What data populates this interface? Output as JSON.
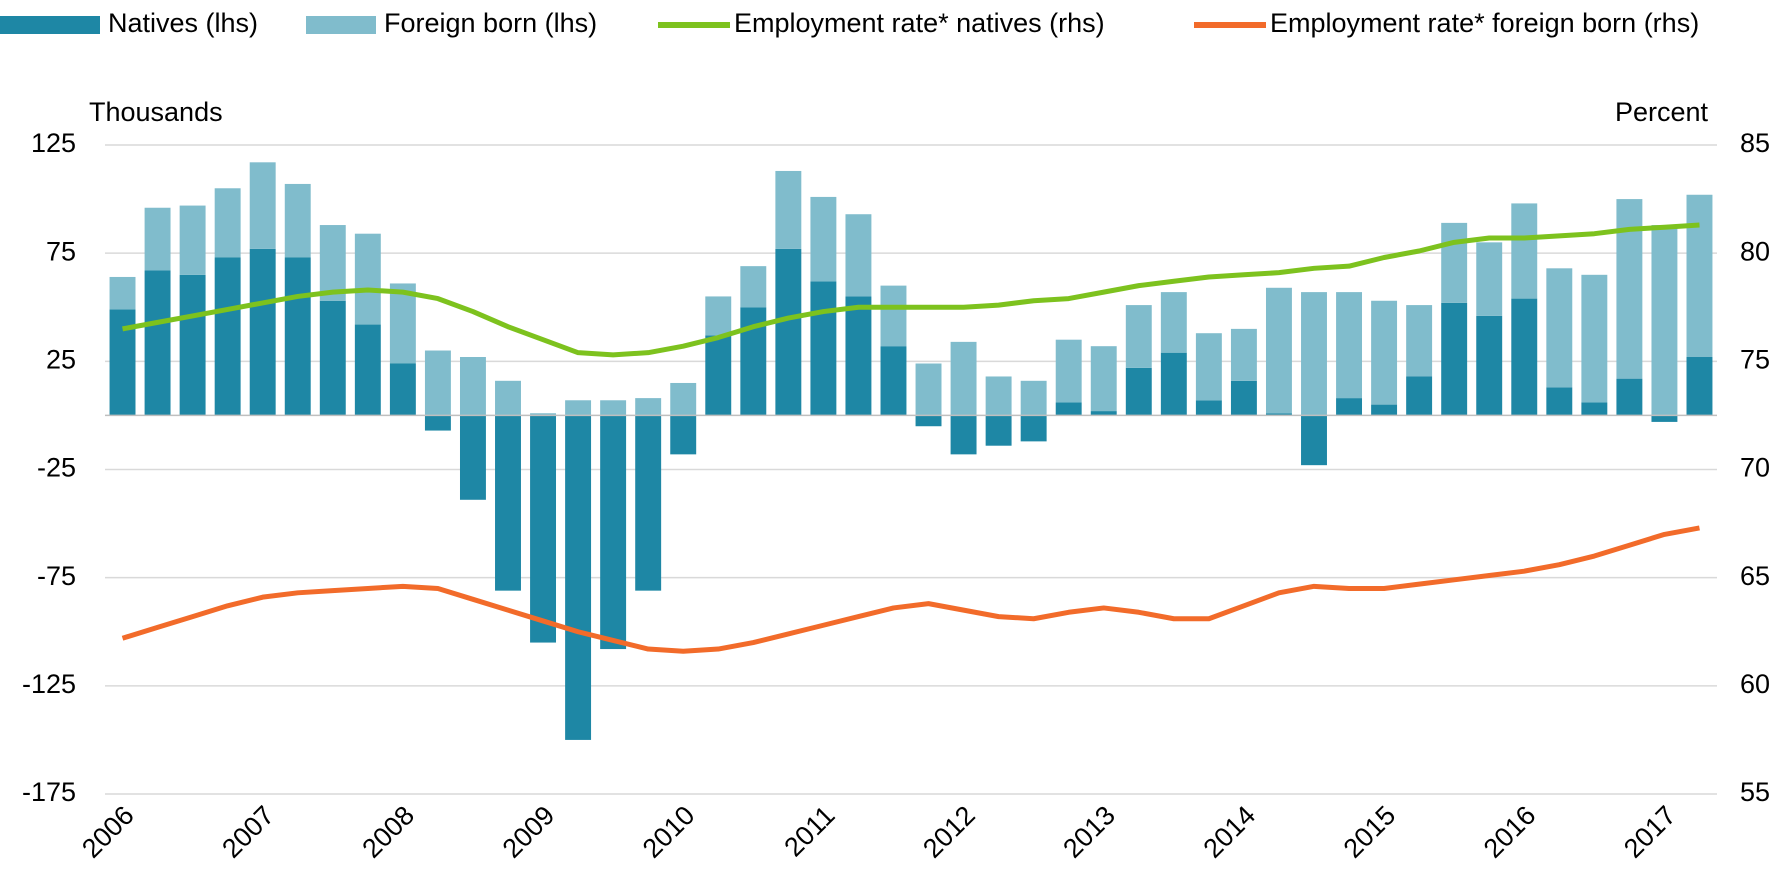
{
  "chart_data": {
    "type": "bar",
    "ylabel": "Thousands",
    "y2label": "Percent",
    "categories": [
      "2006",
      null,
      null,
      null,
      "2007",
      null,
      null,
      null,
      "2008",
      null,
      null,
      null,
      "2009",
      null,
      null,
      null,
      "2010",
      null,
      null,
      null,
      "2011",
      null,
      null,
      null,
      "2012",
      null,
      null,
      null,
      "2013",
      null,
      null,
      null,
      "2014",
      null,
      null,
      null,
      "2015",
      null,
      null,
      null,
      "2016",
      null,
      null,
      null,
      "2017",
      null
    ],
    "series": [
      {
        "name": "Natives (lhs)",
        "color": "#1e87a5",
        "values": [
          49,
          67,
          65,
          73,
          77,
          73,
          53,
          42,
          24,
          -7,
          -39,
          -81,
          -105,
          -150,
          -108,
          -81,
          -18,
          37,
          50,
          77,
          62,
          55,
          32,
          -5,
          -18,
          -14,
          -12,
          6,
          2,
          22,
          29,
          7,
          16,
          1,
          -23,
          8,
          5,
          18,
          52,
          46,
          54,
          13,
          6,
          17,
          -3,
          27
        ]
      },
      {
        "name": "Foreign born (lhs)",
        "color": "#80bccc",
        "values": [
          15,
          29,
          32,
          32,
          40,
          34,
          35,
          42,
          37,
          30,
          27,
          16,
          1,
          7,
          7,
          8,
          15,
          18,
          19,
          36,
          39,
          38,
          28,
          24,
          34,
          18,
          16,
          29,
          30,
          29,
          28,
          31,
          24,
          58,
          57,
          49,
          48,
          33,
          37,
          34,
          44,
          55,
          59,
          83,
          88,
          75
        ]
      },
      {
        "name": "Employment rate* natives (rhs)",
        "color": "#7dc21e",
        "axis": "y2",
        "type": "line",
        "values": [
          76.5,
          76.8,
          77.1,
          77.4,
          77.7,
          78.0,
          78.2,
          78.3,
          78.2,
          77.9,
          77.3,
          76.6,
          76.0,
          75.4,
          75.3,
          75.4,
          75.7,
          76.1,
          76.6,
          77.0,
          77.3,
          77.5,
          77.5,
          77.5,
          77.5,
          77.6,
          77.8,
          77.9,
          78.2,
          78.5,
          78.7,
          78.9,
          79.0,
          79.1,
          79.3,
          79.4,
          79.8,
          80.1,
          80.5,
          80.7,
          80.7,
          80.8,
          80.9,
          81.1,
          81.2,
          81.3
        ]
      },
      {
        "name": "Employment rate* foreign born (rhs)",
        "color": "#f26b2a",
        "axis": "y2",
        "type": "line",
        "values": [
          62.2,
          62.7,
          63.2,
          63.7,
          64.1,
          64.3,
          64.4,
          64.5,
          64.6,
          64.5,
          64.0,
          63.5,
          63.0,
          62.5,
          62.1,
          61.7,
          61.6,
          61.7,
          62.0,
          62.4,
          62.8,
          63.2,
          63.6,
          63.8,
          63.5,
          63.2,
          63.1,
          63.4,
          63.6,
          63.4,
          63.1,
          63.1,
          63.7,
          64.3,
          64.6,
          64.5,
          64.5,
          64.7,
          64.9,
          65.1,
          65.3,
          65.6,
          66.0,
          66.5,
          67.0,
          67.3
        ]
      }
    ],
    "ylim": [
      -175,
      125
    ],
    "yticks": [
      125,
      75,
      25,
      -25,
      -75,
      -125,
      -175
    ],
    "y2lim": [
      55,
      85
    ],
    "y2ticks": [
      85,
      80,
      75,
      70,
      65,
      60,
      55
    ],
    "stacked": true,
    "grid": true,
    "legend": "top"
  }
}
